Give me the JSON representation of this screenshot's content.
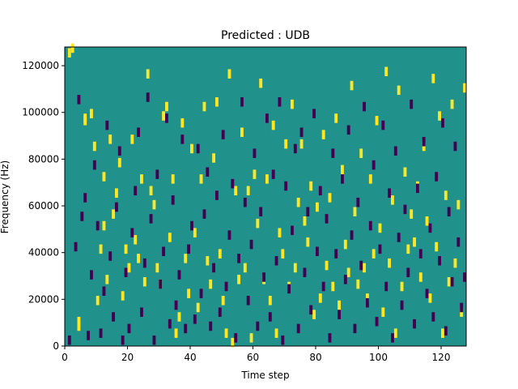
{
  "chart_data": {
    "type": "heatmap",
    "title": "Predicted : UDB",
    "xlabel": "Time step",
    "ylabel": "Frequency (Hz)",
    "xlim": [
      0,
      128
    ],
    "ylim": [
      0,
      128000
    ],
    "xticks": [
      0,
      20,
      40,
      60,
      80,
      100,
      120
    ],
    "yticks": [
      0,
      20000,
      40000,
      60000,
      80000,
      100000,
      120000
    ],
    "n_time_steps": 128,
    "n_freq_bins": 128,
    "bin_height_hz": 1000,
    "colormap": {
      "background": "#21918c",
      "low": "#440154",
      "high": "#fde725"
    },
    "cells_high": [
      [
        1,
        125
      ],
      [
        2,
        127
      ],
      [
        4,
        10
      ],
      [
        4,
        8
      ],
      [
        6,
        97
      ],
      [
        6,
        96
      ],
      [
        8,
        99
      ],
      [
        9,
        85
      ],
      [
        10,
        19
      ],
      [
        11,
        41
      ],
      [
        12,
        51
      ],
      [
        12,
        72
      ],
      [
        13,
        28
      ],
      [
        14,
        88
      ],
      [
        15,
        56
      ],
      [
        16,
        65
      ],
      [
        17,
        78
      ],
      [
        18,
        21
      ],
      [
        19,
        41
      ],
      [
        20,
        33
      ],
      [
        21,
        88
      ],
      [
        22,
        45
      ],
      [
        23,
        37
      ],
      [
        24,
        71
      ],
      [
        25,
        27
      ],
      [
        26,
        116
      ],
      [
        27,
        66
      ],
      [
        28,
        60
      ],
      [
        29,
        33
      ],
      [
        30,
        26
      ],
      [
        31,
        98
      ],
      [
        32,
        102
      ],
      [
        33,
        46
      ],
      [
        34,
        71
      ],
      [
        35,
        5
      ],
      [
        36,
        12
      ],
      [
        37,
        95
      ],
      [
        38,
        37
      ],
      [
        39,
        22
      ],
      [
        40,
        84
      ],
      [
        41,
        48
      ],
      [
        42,
        16
      ],
      [
        43,
        71
      ],
      [
        44,
        102
      ],
      [
        45,
        36
      ],
      [
        46,
        26
      ],
      [
        47,
        80
      ],
      [
        48,
        104
      ],
      [
        49,
        39
      ],
      [
        50,
        19
      ],
      [
        51,
        5
      ],
      [
        52,
        116
      ],
      [
        53,
        1
      ],
      [
        54,
        66
      ],
      [
        55,
        28
      ],
      [
        56,
        91
      ],
      [
        57,
        33
      ],
      [
        58,
        66
      ],
      [
        59,
        3
      ],
      [
        60,
        73
      ],
      [
        61,
        52
      ],
      [
        62,
        112
      ],
      [
        63,
        28
      ],
      [
        64,
        71
      ],
      [
        65,
        19
      ],
      [
        66,
        94
      ],
      [
        67,
        5
      ],
      [
        68,
        48
      ],
      [
        69,
        39
      ],
      [
        70,
        86
      ],
      [
        71,
        25
      ],
      [
        72,
        103
      ],
      [
        73,
        33
      ],
      [
        74,
        61
      ],
      [
        75,
        86
      ],
      [
        76,
        53
      ],
      [
        77,
        44
      ],
      [
        78,
        68
      ],
      [
        79,
        13
      ],
      [
        80,
        59
      ],
      [
        81,
        20
      ],
      [
        82,
        90
      ],
      [
        83,
        34
      ],
      [
        84,
        63
      ],
      [
        85,
        25
      ],
      [
        86,
        97
      ],
      [
        87,
        17
      ],
      [
        88,
        75
      ],
      [
        89,
        43
      ],
      [
        90,
        31
      ],
      [
        91,
        111
      ],
      [
        92,
        57
      ],
      [
        93,
        26
      ],
      [
        94,
        82
      ],
      [
        95,
        33
      ],
      [
        96,
        20
      ],
      [
        97,
        71
      ],
      [
        98,
        39
      ],
      [
        99,
        96
      ],
      [
        100,
        50
      ],
      [
        101,
        14
      ],
      [
        102,
        117
      ],
      [
        103,
        35
      ],
      [
        104,
        62
      ],
      [
        105,
        5
      ],
      [
        106,
        109
      ],
      [
        107,
        25
      ],
      [
        108,
        74
      ],
      [
        109,
        41
      ],
      [
        110,
        56
      ],
      [
        111,
        44
      ],
      [
        112,
        68
      ],
      [
        113,
        29
      ],
      [
        114,
        85
      ],
      [
        115,
        53
      ],
      [
        116,
        20
      ],
      [
        117,
        114
      ],
      [
        118,
        42
      ],
      [
        119,
        98
      ],
      [
        120,
        5
      ],
      [
        121,
        64
      ],
      [
        122,
        27
      ],
      [
        123,
        103
      ],
      [
        124,
        35
      ],
      [
        125,
        60
      ],
      [
        126,
        14
      ],
      [
        127,
        110
      ]
    ],
    "cells_low": [
      [
        1,
        2
      ],
      [
        3,
        42
      ],
      [
        4,
        105
      ],
      [
        5,
        55
      ],
      [
        6,
        63
      ],
      [
        7,
        4
      ],
      [
        8,
        30
      ],
      [
        9,
        77
      ],
      [
        10,
        51
      ],
      [
        11,
        5
      ],
      [
        12,
        23
      ],
      [
        13,
        94
      ],
      [
        14,
        38
      ],
      [
        15,
        12
      ],
      [
        16,
        59
      ],
      [
        17,
        83
      ],
      [
        18,
        2
      ],
      [
        19,
        31
      ],
      [
        20,
        7
      ],
      [
        21,
        48
      ],
      [
        22,
        66
      ],
      [
        23,
        91
      ],
      [
        24,
        14
      ],
      [
        25,
        35
      ],
      [
        26,
        106
      ],
      [
        27,
        54
      ],
      [
        28,
        2
      ],
      [
        29,
        73
      ],
      [
        30,
        26
      ],
      [
        31,
        40
      ],
      [
        32,
        97
      ],
      [
        33,
        9
      ],
      [
        34,
        62
      ],
      [
        35,
        17
      ],
      [
        36,
        30
      ],
      [
        37,
        88
      ],
      [
        38,
        7
      ],
      [
        39,
        41
      ],
      [
        40,
        51
      ],
      [
        41,
        11
      ],
      [
        42,
        84
      ],
      [
        43,
        22
      ],
      [
        44,
        56
      ],
      [
        45,
        74
      ],
      [
        46,
        8
      ],
      [
        47,
        33
      ],
      [
        48,
        64
      ],
      [
        49,
        14
      ],
      [
        50,
        90
      ],
      [
        51,
        25
      ],
      [
        52,
        47
      ],
      [
        53,
        69
      ],
      [
        54,
        3
      ],
      [
        55,
        37
      ],
      [
        56,
        104
      ],
      [
        57,
        61
      ],
      [
        58,
        19
      ],
      [
        59,
        43
      ],
      [
        60,
        82
      ],
      [
        61,
        8
      ],
      [
        62,
        57
      ],
      [
        63,
        29
      ],
      [
        64,
        97
      ],
      [
        65,
        12
      ],
      [
        66,
        73
      ],
      [
        67,
        36
      ],
      [
        68,
        104
      ],
      [
        69,
        2
      ],
      [
        70,
        68
      ],
      [
        71,
        24
      ],
      [
        72,
        49
      ],
      [
        73,
        84
      ],
      [
        74,
        7
      ],
      [
        75,
        91
      ],
      [
        76,
        31
      ],
      [
        77,
        57
      ],
      [
        78,
        15
      ],
      [
        79,
        99
      ],
      [
        80,
        40
      ],
      [
        81,
        66
      ],
      [
        82,
        25
      ],
      [
        83,
        54
      ],
      [
        84,
        3
      ],
      [
        85,
        82
      ],
      [
        86,
        39
      ],
      [
        87,
        13
      ],
      [
        88,
        71
      ],
      [
        89,
        28
      ],
      [
        90,
        92
      ],
      [
        91,
        47
      ],
      [
        92,
        7
      ],
      [
        93,
        61
      ],
      [
        94,
        34
      ],
      [
        95,
        102
      ],
      [
        96,
        18
      ],
      [
        97,
        51
      ],
      [
        98,
        77
      ],
      [
        99,
        10
      ],
      [
        100,
        41
      ],
      [
        101,
        94
      ],
      [
        102,
        25
      ],
      [
        103,
        65
      ],
      [
        104,
        3
      ],
      [
        105,
        83
      ],
      [
        106,
        46
      ],
      [
        107,
        17
      ],
      [
        108,
        58
      ],
      [
        109,
        31
      ],
      [
        110,
        103
      ],
      [
        111,
        9
      ],
      [
        112,
        67
      ],
      [
        113,
        39
      ],
      [
        114,
        87
      ],
      [
        115,
        22
      ],
      [
        116,
        50
      ],
      [
        117,
        12
      ],
      [
        118,
        72
      ],
      [
        119,
        36
      ],
      [
        120,
        95
      ],
      [
        121,
        6
      ],
      [
        122,
        57
      ],
      [
        123,
        27
      ],
      [
        124,
        85
      ],
      [
        125,
        44
      ],
      [
        126,
        16
      ],
      [
        127,
        29
      ]
    ]
  }
}
